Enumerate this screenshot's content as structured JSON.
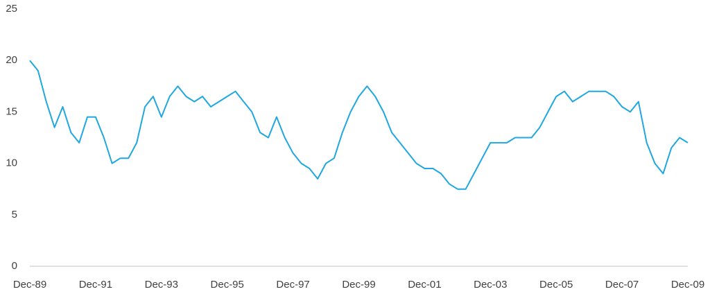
{
  "chart_data": {
    "type": "line",
    "categories": [
      "Dec-89",
      null,
      null,
      null,
      null,
      null,
      null,
      null,
      "Dec-91",
      null,
      null,
      null,
      null,
      null,
      null,
      null,
      "Dec-93",
      null,
      null,
      null,
      null,
      null,
      null,
      null,
      "Dec-95",
      null,
      null,
      null,
      null,
      null,
      null,
      null,
      "Dec-97",
      null,
      null,
      null,
      null,
      null,
      null,
      null,
      "Dec-99",
      null,
      null,
      null,
      null,
      null,
      null,
      null,
      "Dec-01",
      null,
      null,
      null,
      null,
      null,
      null,
      null,
      "Dec-03",
      null,
      null,
      null,
      null,
      null,
      null,
      null,
      "Dec-05",
      null,
      null,
      null,
      null,
      null,
      null,
      null,
      "Dec-07",
      null,
      null,
      null,
      null,
      null,
      null,
      null,
      "Dec-09"
    ],
    "series": [
      {
        "color": "#1ea7e1",
        "values": [
          20,
          19,
          16,
          13.5,
          15.5,
          13,
          12,
          14.5,
          14.5,
          12.5,
          10,
          10.5,
          10.5,
          12,
          15.5,
          16.5,
          14.5,
          16.5,
          17.5,
          16.5,
          16,
          16.5,
          15.5,
          16,
          16.5,
          17,
          16,
          15,
          13,
          12.5,
          14.5,
          12.5,
          11,
          10,
          9.5,
          8.5,
          10,
          10.5,
          13,
          15,
          16.5,
          17.5,
          16.5,
          15,
          13,
          12,
          11,
          10,
          9.5,
          9.5,
          9,
          8,
          7.5,
          7.5,
          9,
          10.5,
          12,
          12,
          12,
          12.5,
          12.5,
          12.5,
          13.5,
          15,
          16.5,
          17,
          16,
          16.5,
          17,
          17,
          17,
          16.5,
          15.5,
          15,
          16,
          12,
          10,
          9,
          11.5,
          12.5,
          12
        ]
      }
    ],
    "ylim": [
      0,
      25
    ],
    "yticks": [
      0,
      5,
      10,
      15,
      20,
      25
    ],
    "grid": false
  }
}
